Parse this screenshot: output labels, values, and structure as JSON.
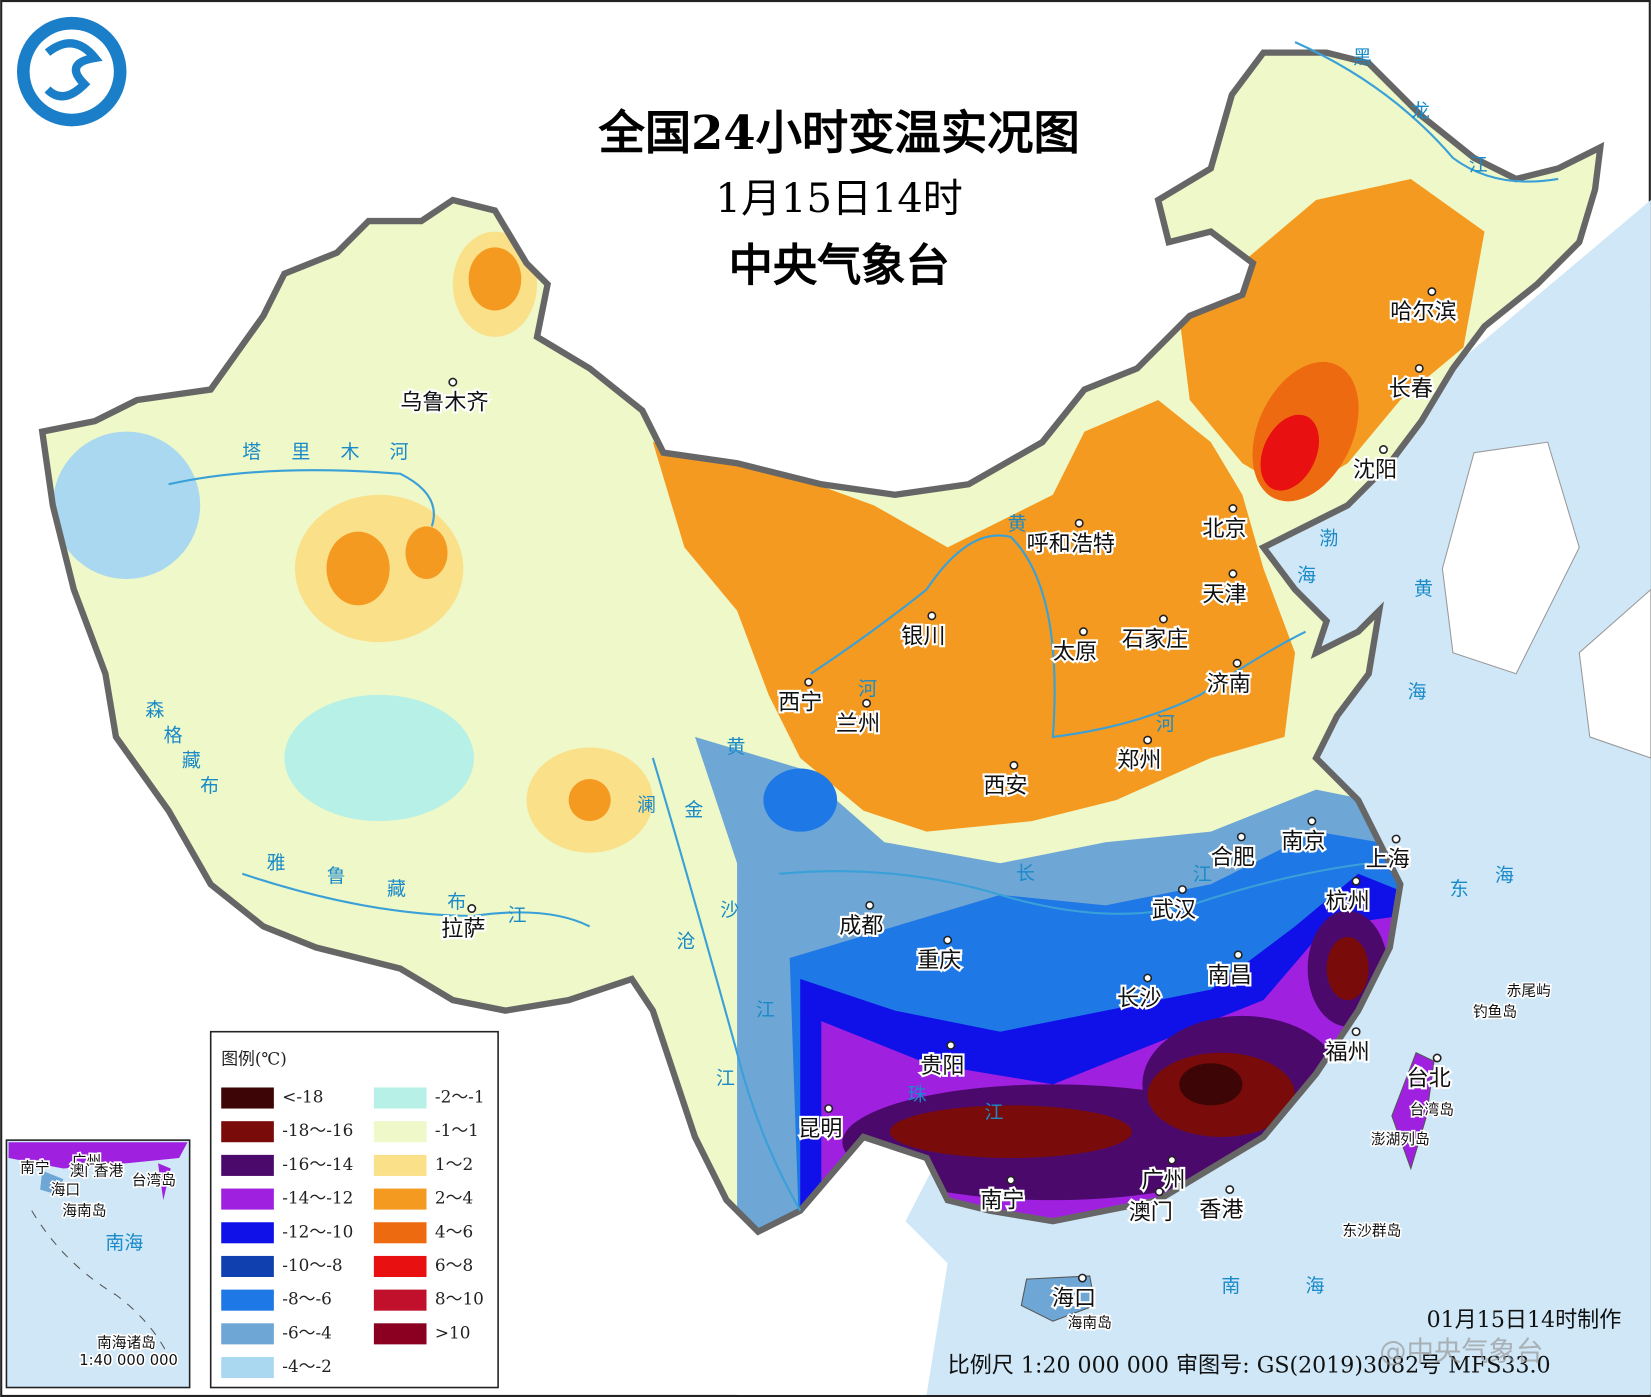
{
  "header": {
    "title": "全国24小时变温实况图",
    "subtitle": "1月15日14时",
    "agency": "中央气象台"
  },
  "legend": {
    "title": "图例(℃)",
    "items": [
      {
        "label": "<-18",
        "color": "#3d0505"
      },
      {
        "label": "-18～-16",
        "color": "#7a0b0b"
      },
      {
        "label": "-16～-14",
        "color": "#4b0a6b"
      },
      {
        "label": "-14～-12",
        "color": "#a020e0"
      },
      {
        "label": "-12～-10",
        "color": "#1010e8"
      },
      {
        "label": "-10～-8",
        "color": "#1040b0"
      },
      {
        "label": "-8～-6",
        "color": "#1e78e6"
      },
      {
        "label": "-6～-4",
        "color": "#6ea6d6"
      },
      {
        "label": "-4～-2",
        "color": "#aad8f0"
      },
      {
        "label": "-2～-1",
        "color": "#b6f0e6"
      },
      {
        "label": "-1～1",
        "color": "#eef8c8"
      },
      {
        "label": "1～2",
        "color": "#fbe08a"
      },
      {
        "label": "2～4",
        "color": "#f59a20"
      },
      {
        "label": "4～6",
        "color": "#ee6a10"
      },
      {
        "label": "6～8",
        "color": "#e81010"
      },
      {
        "label": "8～10",
        "color": "#c0102c"
      },
      {
        "label": ">10",
        "color": "#8b0020"
      }
    ]
  },
  "cities": [
    "乌鲁木齐",
    "北京",
    "天津",
    "石家庄",
    "太原",
    "呼和浩特",
    "银川",
    "西宁",
    "兰州",
    "西安",
    "郑州",
    "济南",
    "哈尔滨",
    "长春",
    "沈阳",
    "合肥",
    "南京",
    "上海",
    "杭州",
    "武汉",
    "南昌",
    "长沙",
    "成都",
    "重庆",
    "贵阳",
    "昆明",
    "南宁",
    "广州",
    "澳门",
    "香港",
    "福州",
    "台北",
    "拉萨",
    "海口"
  ],
  "places": [
    "赤尾屿",
    "钓鱼岛",
    "台湾岛",
    "澎湖列岛",
    "东沙群岛",
    "海南岛"
  ],
  "water_labels": [
    "塔里木河",
    "森格藏布",
    "雅鲁藏布江",
    "澜沧江",
    "金沙江",
    "黄河",
    "黄",
    "河",
    "长江",
    "珠江",
    "渤海",
    "黄海",
    "东海",
    "南海",
    "黑龙江"
  ],
  "inset": {
    "labels": [
      "南宁",
      "广州",
      "澳门",
      "香港",
      "海口",
      "台湾岛",
      "海南岛",
      "南海"
    ],
    "caption": "南海诸岛",
    "scale": "1:40 000 000"
  },
  "footer": {
    "made": "01月15日14时制作",
    "scale": "比例尺 1:20 000 000 审图号: GS(2019)3082号 MFS33.0",
    "watermark": "@中央气象台"
  }
}
